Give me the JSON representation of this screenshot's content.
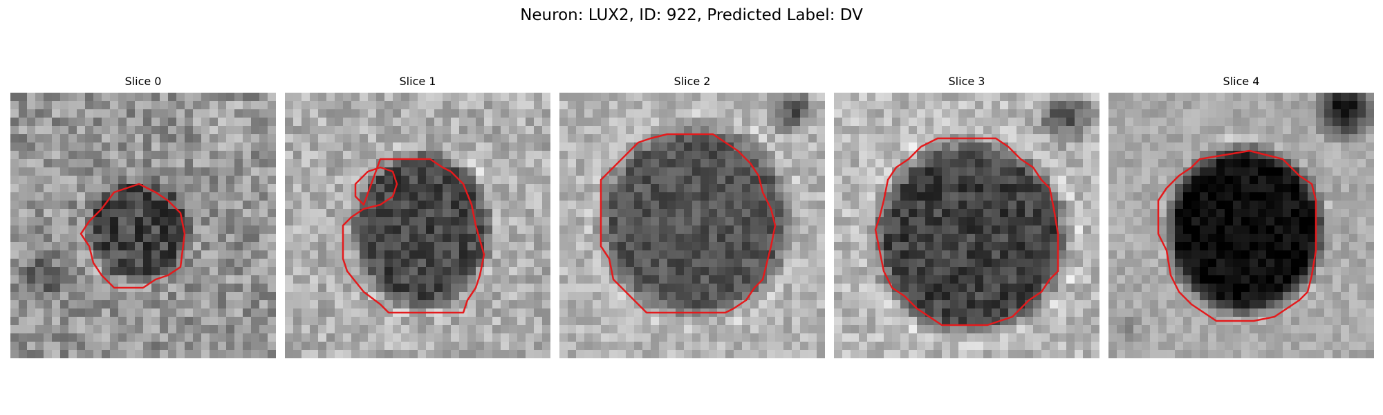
{
  "figure": {
    "title": "Neuron: LUX2, ID: 922, Predicted Label: DV"
  },
  "panels": [
    {
      "title": "Slice 0"
    },
    {
      "title": "Slice 1"
    },
    {
      "title": "Slice 2"
    },
    {
      "title": "Slice 3"
    },
    {
      "title": "Slice 4"
    }
  ],
  "colors": {
    "contour": "#e41a1c",
    "background": "#ffffff"
  }
}
